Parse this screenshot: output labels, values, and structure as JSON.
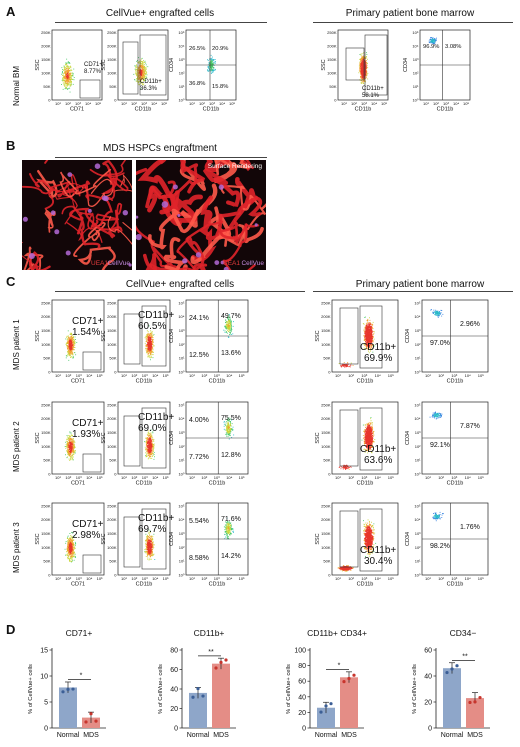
{
  "panels": {
    "A": {
      "letter": "A",
      "left_title": "CellVue+ engrafted cells",
      "right_title": "Primary patient bone marrow",
      "row_label": "Normal BM",
      "plots": [
        {
          "gate_main": "CD71+",
          "gate_pct": "8.77%",
          "xaxis": "CD71",
          "yaxis": "SSC"
        },
        {
          "gate_main": "CD11b+",
          "gate_pct": "36.3%",
          "xaxis": "CD11b",
          "yaxis": "SSC"
        },
        {
          "quad": [
            "26.5%",
            "20.9%",
            "36.8%",
            "15.8%"
          ],
          "xaxis": "CD11b",
          "yaxis": "CD34"
        },
        {
          "gate_main": "CD11b+",
          "gate_pct": "58.1%",
          "xaxis": "CD11b",
          "yaxis": "SSC"
        },
        {
          "quad": [
            "96.9%",
            "3.08%",
            "",
            ""
          ],
          "xaxis": "CD11b",
          "yaxis": "CD34"
        }
      ]
    },
    "B": {
      "letter": "B",
      "title": "MDS HSPCs engraftment",
      "left_label1": "UEA1",
      "left_label2": "CellVue",
      "right_tag": "Surface Rendering",
      "right_label1": "UEA1",
      "right_label2": "CellVue"
    },
    "C": {
      "letter": "C",
      "left_title": "CellVue+ engrafted cells",
      "right_title": "Primary patient bone marrow",
      "rows": [
        {
          "label": "MDS patient 1",
          "cd71": "CD71+",
          "cd71_pct": "1.54%",
          "cd11b": "CD11b+",
          "cd11b_pct": "60.5%",
          "quad": [
            "24.1%",
            "49.7%",
            "12.5%",
            "13.6%"
          ],
          "pbm": "CD11b+",
          "pbm_pct": "69.9%",
          "quad2": [
            "97.0%",
            "2.96%"
          ]
        },
        {
          "label": "MDS patient 2",
          "cd71": "CD71+",
          "cd71_pct": "1.93%",
          "cd11b": "CD11b+",
          "cd11b_pct": "69.0%",
          "quad": [
            "4.00%",
            "75.5%",
            "7.72%",
            "12.8%"
          ],
          "pbm": "CD11b+",
          "pbm_pct": "63.6%",
          "quad2": [
            "92.1%",
            "7.87%"
          ]
        },
        {
          "label": "MDS patient 3",
          "cd71": "CD71+",
          "cd71_pct": "2.98%",
          "cd11b": "CD11b+",
          "cd11b_pct": "69.7%",
          "quad": [
            "5.54%",
            "71.6%",
            "8.58%",
            "14.2%"
          ],
          "pbm": "CD11b+",
          "pbm_pct": "30.4%",
          "quad2": [
            "98.2%",
            "1.76%"
          ]
        }
      ],
      "axes": {
        "ssc": "SSC",
        "cd71": "CD71",
        "cd11b": "CD11b",
        "cd34": "CD34"
      }
    },
    "D": {
      "letter": "D",
      "colors": {
        "normal": "#8ea6c9",
        "mds": "#e48d86"
      }
    }
  },
  "chart_data": [
    {
      "type": "bar",
      "title": "CD71+",
      "ylabel": "% of CellVue+ cells",
      "categories": [
        "Normal",
        "MDS"
      ],
      "values": [
        7.8,
        2.0
      ],
      "ylim": [
        0,
        15
      ],
      "yticks": [
        0,
        5,
        10,
        15
      ],
      "significance": "*"
    },
    {
      "type": "bar",
      "title": "CD11b+",
      "ylabel": "% of CellVue+ cells",
      "categories": [
        "Normal",
        "MDS"
      ],
      "values": [
        36,
        66
      ],
      "ylim": [
        0,
        80
      ],
      "yticks": [
        0,
        20,
        40,
        60,
        80
      ],
      "significance": "**"
    },
    {
      "type": "bar",
      "title": "CD11b+ CD34+",
      "ylabel": "% of CellVue+ cells",
      "categories": [
        "Normal",
        "MDS"
      ],
      "values": [
        26,
        65
      ],
      "ylim": [
        0,
        100
      ],
      "yticks": [
        0,
        20,
        40,
        60,
        80,
        100
      ],
      "significance": "*"
    },
    {
      "type": "bar",
      "title": "CD34−",
      "ylabel": "% of CellVue+ cells",
      "categories": [
        "Normal",
        "MDS"
      ],
      "values": [
        46,
        23
      ],
      "ylim": [
        0,
        60
      ],
      "yticks": [
        0,
        20,
        40,
        60
      ],
      "significance": "**"
    }
  ]
}
